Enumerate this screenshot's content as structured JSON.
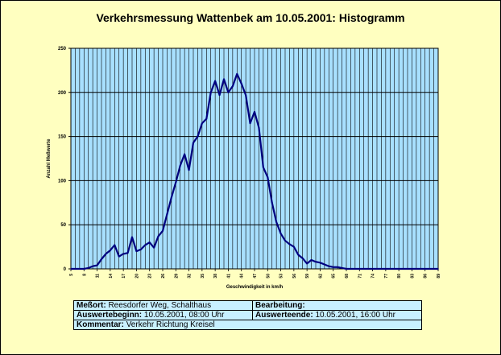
{
  "title": "Verkehrsmessung Wattenbek am 10.05.2001: Histogramm",
  "chart_data": {
    "type": "line",
    "xlabel": "Geschwindigkeit in km/h",
    "ylabel": "Anzahl Meßwerte",
    "ylim": [
      0,
      250
    ],
    "yticks": [
      0,
      50,
      100,
      150,
      200,
      250
    ],
    "xlim": [
      5,
      89
    ],
    "xtick_labels": [
      "5",
      "8",
      "11",
      "14",
      "17",
      "20",
      "23",
      "26",
      "29",
      "32",
      "35",
      "38",
      "41",
      "44",
      "47",
      "50",
      "53",
      "56",
      "59",
      "62",
      "65",
      "68",
      "71",
      "74",
      "77",
      "80",
      "83",
      "86",
      "89"
    ],
    "grid": true,
    "colors": {
      "plot_bg": "#a8e0ff",
      "line": "#000080",
      "grid": "#000000"
    },
    "x": [
      5,
      6,
      7,
      8,
      9,
      10,
      11,
      12,
      13,
      14,
      15,
      16,
      17,
      18,
      19,
      20,
      21,
      22,
      23,
      24,
      25,
      26,
      27,
      28,
      29,
      30,
      31,
      32,
      33,
      34,
      35,
      36,
      37,
      38,
      39,
      40,
      41,
      42,
      43,
      44,
      45,
      46,
      47,
      48,
      49,
      50,
      51,
      52,
      53,
      54,
      55,
      56,
      57,
      58,
      59,
      60,
      61,
      62,
      63,
      64,
      65,
      66,
      67,
      68,
      69,
      70,
      71,
      72,
      73,
      74,
      75,
      76,
      77,
      78,
      79,
      80,
      81,
      82,
      83,
      84,
      85,
      86,
      87,
      88,
      89
    ],
    "values": [
      0,
      0,
      0,
      0,
      1,
      3,
      4,
      11,
      17,
      21,
      27,
      14,
      17,
      18,
      36,
      20,
      22,
      27,
      30,
      24,
      37,
      43,
      62,
      81,
      98,
      117,
      130,
      112,
      143,
      150,
      165,
      170,
      200,
      213,
      197,
      215,
      200,
      207,
      221,
      210,
      197,
      165,
      178,
      160,
      115,
      104,
      75,
      53,
      40,
      32,
      28,
      25,
      16,
      12,
      6,
      10,
      8,
      7,
      5,
      3,
      2,
      2,
      1,
      0,
      0,
      0,
      0,
      0,
      0,
      0,
      0,
      0,
      0,
      0,
      0,
      0,
      0,
      0,
      0,
      0,
      0,
      0,
      0,
      0,
      0
    ]
  },
  "info": {
    "messort_label": "Meßort:",
    "messort_value": "Reesdorfer Weg, Schalthaus",
    "bearbeitung_label": "Bearbeitung:",
    "bearbeitung_value": "",
    "beginn_label": "Auswertebeginn:",
    "beginn_value": "10.05.2001, 08:00 Uhr",
    "ende_label": "Auswerteende:",
    "ende_value": "10.05.2001, 16:00 Uhr",
    "kommentar_label": "Kommentar:",
    "kommentar_value": "Verkehr Richtung Kreisel"
  }
}
